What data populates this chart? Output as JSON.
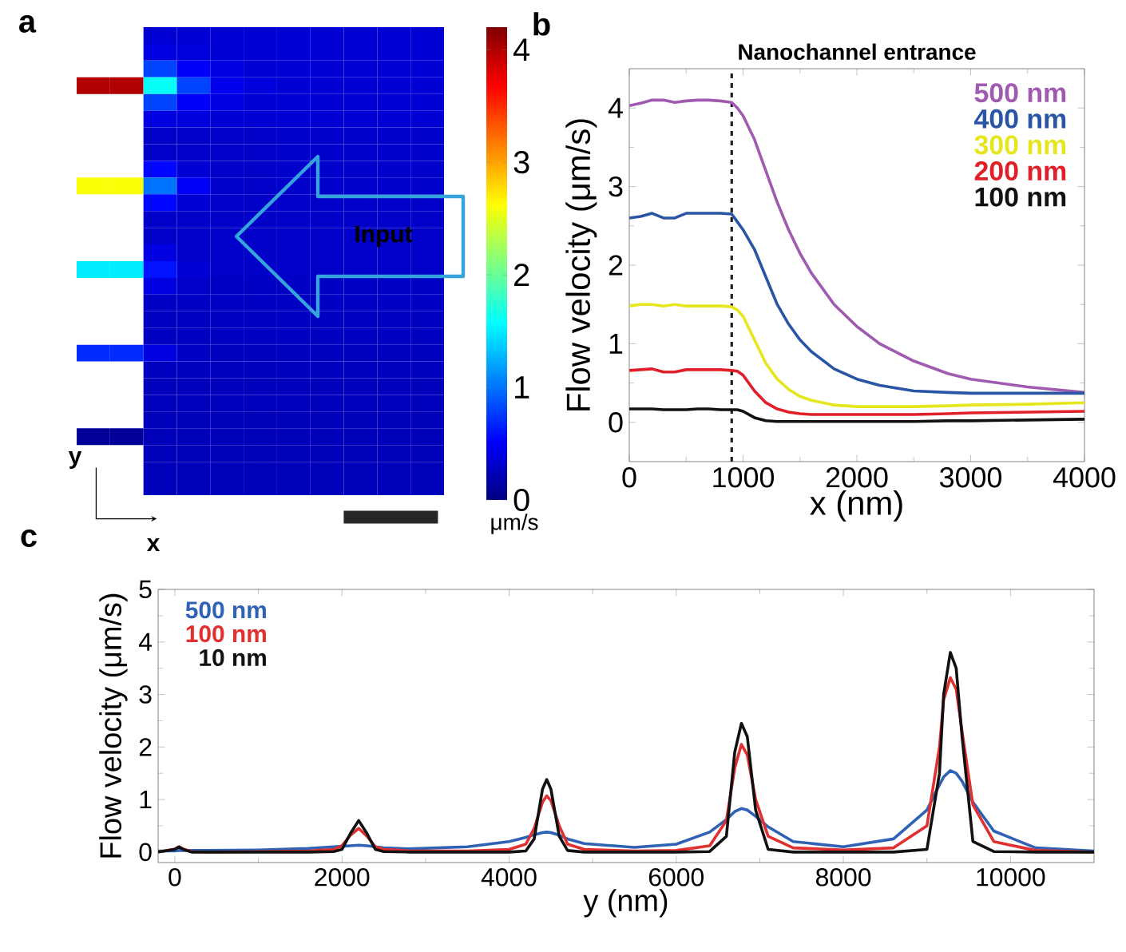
{
  "chart_data": [
    {
      "type": "heatmap",
      "categories": [
        null,
        null,
        null,
        null,
        null,
        null,
        null,
        null,
        null,
        null,
        null
      ],
      "y_categories": [
        null,
        null,
        null,
        null,
        null,
        null,
        null,
        null,
        null,
        null,
        null,
        null,
        null,
        null,
        null,
        null,
        null,
        null,
        null,
        null,
        null,
        null,
        null,
        null,
        null,
        null,
        null,
        null
      ],
      "cells": [
        [
          null,
          null,
          0.35,
          0.35,
          0.35,
          0.35,
          0.35,
          0.35,
          0.35,
          0.35,
          0.35
        ],
        [
          null,
          null,
          0.4,
          0.38,
          0.35,
          0.35,
          0.35,
          0.35,
          0.35,
          0.35,
          0.35
        ],
        [
          null,
          null,
          0.8,
          0.5,
          0.4,
          0.35,
          0.35,
          0.35,
          0.35,
          0.35,
          0.35
        ],
        [
          4.0,
          4.0,
          1.6,
          0.8,
          0.45,
          0.38,
          0.35,
          0.35,
          0.35,
          0.35,
          0.35
        ],
        [
          null,
          null,
          0.8,
          0.5,
          0.4,
          0.35,
          0.35,
          0.35,
          0.35,
          0.35,
          0.35
        ],
        [
          null,
          null,
          0.4,
          0.38,
          0.35,
          0.35,
          0.35,
          0.35,
          0.35,
          0.35,
          0.35
        ],
        [
          null,
          null,
          0.3,
          0.3,
          0.3,
          0.3,
          0.32,
          0.32,
          0.32,
          0.32,
          0.32
        ],
        [
          null,
          null,
          0.3,
          0.3,
          0.3,
          0.3,
          0.32,
          0.32,
          0.32,
          0.32,
          0.32
        ],
        [
          null,
          null,
          0.55,
          0.35,
          0.3,
          0.3,
          0.32,
          0.32,
          0.32,
          0.32,
          0.32
        ],
        [
          2.6,
          2.6,
          1.0,
          0.5,
          0.32,
          0.3,
          0.32,
          0.32,
          0.32,
          0.32,
          0.32
        ],
        [
          null,
          null,
          0.55,
          0.35,
          0.3,
          0.3,
          0.3,
          0.3,
          0.3,
          0.3,
          0.3
        ],
        [
          null,
          null,
          0.3,
          0.3,
          0.3,
          0.3,
          0.3,
          0.3,
          0.3,
          0.3,
          0.3
        ],
        [
          null,
          null,
          0.3,
          0.3,
          0.3,
          0.3,
          0.3,
          0.3,
          0.3,
          0.3,
          0.3
        ],
        [
          null,
          null,
          0.4,
          0.3,
          0.3,
          0.3,
          0.3,
          0.3,
          0.3,
          0.3,
          0.3
        ],
        [
          1.5,
          1.5,
          0.6,
          0.35,
          0.3,
          0.3,
          0.3,
          0.3,
          0.3,
          0.3,
          0.3
        ],
        [
          null,
          null,
          0.4,
          0.3,
          0.28,
          0.28,
          0.28,
          0.28,
          0.28,
          0.28,
          0.28
        ],
        [
          null,
          null,
          0.28,
          0.28,
          0.28,
          0.28,
          0.28,
          0.28,
          0.28,
          0.28,
          0.28
        ],
        [
          null,
          null,
          0.27,
          0.27,
          0.27,
          0.27,
          0.27,
          0.27,
          0.27,
          0.27,
          0.27
        ],
        [
          null,
          null,
          0.27,
          0.27,
          0.27,
          0.27,
          0.27,
          0.27,
          0.27,
          0.27,
          0.27
        ],
        [
          0.7,
          0.7,
          0.4,
          0.28,
          0.26,
          0.26,
          0.26,
          0.26,
          0.26,
          0.26,
          0.26
        ],
        [
          null,
          null,
          0.26,
          0.26,
          0.26,
          0.26,
          0.26,
          0.26,
          0.26,
          0.26,
          0.26
        ],
        [
          null,
          null,
          0.25,
          0.25,
          0.25,
          0.25,
          0.25,
          0.25,
          0.25,
          0.25,
          0.25
        ],
        [
          null,
          null,
          0.25,
          0.25,
          0.25,
          0.25,
          0.25,
          0.25,
          0.25,
          0.25,
          0.25
        ],
        [
          null,
          null,
          0.24,
          0.24,
          0.24,
          0.24,
          0.24,
          0.24,
          0.24,
          0.24,
          0.24
        ],
        [
          0.1,
          0.1,
          0.24,
          0.24,
          0.24,
          0.24,
          0.24,
          0.24,
          0.24,
          0.24,
          0.24
        ],
        [
          null,
          null,
          0.24,
          0.24,
          0.24,
          0.24,
          0.24,
          0.24,
          0.24,
          0.24,
          0.24
        ],
        [
          null,
          null,
          0.24,
          0.24,
          0.24,
          0.24,
          0.24,
          0.24,
          0.24,
          0.24,
          0.24
        ],
        [
          null,
          null,
          0.24,
          0.24,
          0.24,
          0.24,
          0.24,
          0.24,
          0.24,
          0.24,
          0.24
        ]
      ],
      "clim": [
        0,
        4.2
      ],
      "cticks": [
        0,
        1,
        2,
        3,
        4
      ],
      "clabel": "μm/s",
      "tick_labels": false,
      "annotations": [
        "a",
        "Input",
        "y",
        "x"
      ]
    },
    {
      "type": "line",
      "title": "Nanochannel entrance",
      "xlabel": "x (nm)",
      "ylabel": "Flow velocity (μm/s)",
      "x": [
        0,
        100,
        200,
        300,
        400,
        500,
        600,
        700,
        800,
        900,
        950,
        1000,
        1100,
        1200,
        1300,
        1400,
        1500,
        1600,
        1800,
        2000,
        2200,
        2500,
        2800,
        3000,
        3500,
        4000
      ],
      "series": [
        {
          "name": "500 nm",
          "color": "#a05ab0",
          "values": [
            4.03,
            4.06,
            4.1,
            4.1,
            4.07,
            4.09,
            4.1,
            4.1,
            4.09,
            4.07,
            4.0,
            3.9,
            3.6,
            3.2,
            2.8,
            2.45,
            2.15,
            1.9,
            1.5,
            1.22,
            1.0,
            0.78,
            0.62,
            0.55,
            0.45,
            0.38
          ]
        },
        {
          "name": "400 nm",
          "color": "#2a55a5",
          "values": [
            2.6,
            2.62,
            2.66,
            2.6,
            2.6,
            2.66,
            2.66,
            2.66,
            2.66,
            2.65,
            2.55,
            2.45,
            2.2,
            1.85,
            1.5,
            1.25,
            1.05,
            0.9,
            0.68,
            0.55,
            0.47,
            0.4,
            0.38,
            0.37,
            0.37,
            0.37
          ]
        },
        {
          "name": "300 nm",
          "color": "#e6e61e",
          "values": [
            1.48,
            1.5,
            1.5,
            1.48,
            1.5,
            1.48,
            1.48,
            1.48,
            1.48,
            1.47,
            1.43,
            1.35,
            1.05,
            0.75,
            0.55,
            0.42,
            0.33,
            0.28,
            0.22,
            0.2,
            0.2,
            0.2,
            0.21,
            0.22,
            0.23,
            0.25
          ]
        },
        {
          "name": "200 nm",
          "color": "#e02028",
          "values": [
            0.66,
            0.67,
            0.68,
            0.64,
            0.64,
            0.67,
            0.67,
            0.67,
            0.67,
            0.66,
            0.65,
            0.6,
            0.4,
            0.25,
            0.17,
            0.13,
            0.11,
            0.1,
            0.1,
            0.1,
            0.1,
            0.1,
            0.11,
            0.12,
            0.13,
            0.14
          ]
        },
        {
          "name": "100 nm",
          "color": "#111111",
          "values": [
            0.17,
            0.17,
            0.17,
            0.16,
            0.16,
            0.16,
            0.17,
            0.17,
            0.16,
            0.16,
            0.16,
            0.14,
            0.06,
            0.02,
            0.01,
            0.01,
            0.01,
            0.01,
            0.01,
            0.01,
            0.01,
            0.01,
            0.02,
            0.02,
            0.03,
            0.04
          ]
        }
      ],
      "xlim": [
        0,
        4000
      ],
      "ylim": [
        -0.5,
        4.5
      ],
      "xticks": [
        0,
        1000,
        2000,
        3000,
        4000
      ],
      "yticks": [
        0,
        1,
        2,
        3,
        4
      ],
      "ref_lines": [
        {
          "axis": "x",
          "value": 900,
          "color": "#222222",
          "line_style": "dashed"
        }
      ],
      "legend": "top right",
      "annotations": [
        "b"
      ]
    },
    {
      "type": "line",
      "xlabel": "y (nm)",
      "ylabel": "Flow velocity (μm/s)",
      "x": [
        -200,
        0,
        50,
        100,
        200,
        400,
        1000,
        1600,
        1900,
        2000,
        2100,
        2200,
        2300,
        2400,
        2500,
        2800,
        3500,
        4000,
        4200,
        4300,
        4400,
        4450,
        4500,
        4600,
        4700,
        4900,
        5500,
        6000,
        6400,
        6600,
        6700,
        6780,
        6850,
        6950,
        7100,
        7400,
        8000,
        8600,
        9000,
        9150,
        9200,
        9280,
        9350,
        9420,
        9550,
        9800,
        10300,
        11000
      ],
      "series": [
        {
          "name": "500 nm",
          "color": "#2f62b4",
          "values": [
            0.02,
            0.02,
            0.03,
            0.03,
            0.03,
            0.03,
            0.04,
            0.07,
            0.1,
            0.11,
            0.12,
            0.13,
            0.12,
            0.1,
            0.08,
            0.06,
            0.1,
            0.2,
            0.28,
            0.33,
            0.37,
            0.38,
            0.37,
            0.32,
            0.25,
            0.16,
            0.09,
            0.15,
            0.38,
            0.62,
            0.77,
            0.83,
            0.8,
            0.68,
            0.48,
            0.2,
            0.1,
            0.25,
            0.8,
            1.28,
            1.43,
            1.55,
            1.5,
            1.35,
            0.95,
            0.4,
            0.08,
            0.02
          ]
        },
        {
          "name": "100 nm",
          "color": "#e03030",
          "values": [
            0,
            0.06,
            0.1,
            0.06,
            0.01,
            0,
            0.01,
            0.02,
            0.05,
            0.12,
            0.32,
            0.45,
            0.3,
            0.1,
            0.05,
            0.02,
            0.02,
            0.05,
            0.15,
            0.45,
            0.95,
            1.07,
            0.98,
            0.5,
            0.15,
            0.05,
            0.02,
            0.03,
            0.12,
            0.6,
            1.6,
            2.05,
            1.85,
            1.0,
            0.3,
            0.08,
            0.04,
            0.08,
            0.5,
            2.0,
            2.9,
            3.32,
            3.1,
            2.3,
            0.9,
            0.2,
            0.03,
            0
          ]
        },
        {
          "name": "10 nm",
          "color": "#111111",
          "values": [
            0,
            0.05,
            0.1,
            0.05,
            0,
            0,
            0,
            0,
            0.01,
            0.05,
            0.35,
            0.6,
            0.35,
            0.05,
            0.01,
            0,
            0,
            0,
            0.02,
            0.25,
            1.2,
            1.38,
            1.2,
            0.3,
            0.03,
            0,
            0,
            0,
            0.01,
            0.3,
            1.9,
            2.45,
            2.2,
            0.8,
            0.05,
            0,
            0,
            0,
            0.05,
            1.5,
            3.0,
            3.8,
            3.5,
            2.2,
            0.2,
            0.01,
            0,
            0
          ]
        }
      ],
      "xlim": [
        -200,
        11000
      ],
      "ylim": [
        -0.2,
        5
      ],
      "xticks": [
        0,
        2000,
        4000,
        6000,
        8000,
        10000
      ],
      "yticks": [
        0,
        1,
        2,
        3,
        4,
        5
      ],
      "legend": "top left",
      "annotations": [
        "c"
      ]
    }
  ]
}
